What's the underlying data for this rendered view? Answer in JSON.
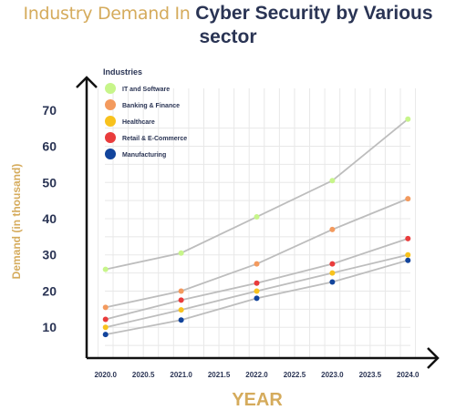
{
  "chart_data": {
    "type": "line",
    "title_part1": "Industry Demand In ",
    "title_part2": "Cyber Security by Various",
    "title_part3": "sector",
    "xlabel": "YEAR",
    "ylabel": "Demand  (in thousand)",
    "legend_title": "Industries",
    "legend_position": "top-left",
    "grid": true,
    "xlim": [
      2019.75,
      2024.25
    ],
    "ylim": [
      1.5,
      79
    ],
    "x_ticks": [
      "2020.0",
      "2020.5",
      "2021.0",
      "2021.5",
      "2022.0",
      "2022.5",
      "2023.0",
      "2023.5",
      "2024.0"
    ],
    "y_ticks": [
      "10",
      "20",
      "30",
      "40",
      "50",
      "60",
      "70"
    ],
    "x": [
      2020,
      2021,
      2022,
      2023,
      2024
    ],
    "series": [
      {
        "name": "IT and Software",
        "color": "#c7f58a",
        "values": [
          26,
          30.5,
          40.5,
          50.5,
          67.5
        ]
      },
      {
        "name": "Banking & Finance",
        "color": "#f39a5e",
        "values": [
          15.5,
          20,
          27.5,
          37,
          45.5
        ]
      },
      {
        "name": "Healthcare",
        "color": "#f8c21d",
        "values": [
          10,
          14.8,
          20,
          25,
          30
        ]
      },
      {
        "name": "Retail & E-Commerce",
        "color": "#e93c3c",
        "values": [
          12.2,
          17.5,
          22.2,
          27.5,
          34.5
        ]
      },
      {
        "name": "Manufacturing",
        "color": "#12449c",
        "values": [
          8,
          12,
          18,
          22.5,
          28.5
        ]
      }
    ],
    "line_color": "#bdbdbd",
    "axis_color": "#111111",
    "grid_color": "#e8e8e8",
    "label_color": "#d5ab5c",
    "tick_color": "#2a3454"
  }
}
